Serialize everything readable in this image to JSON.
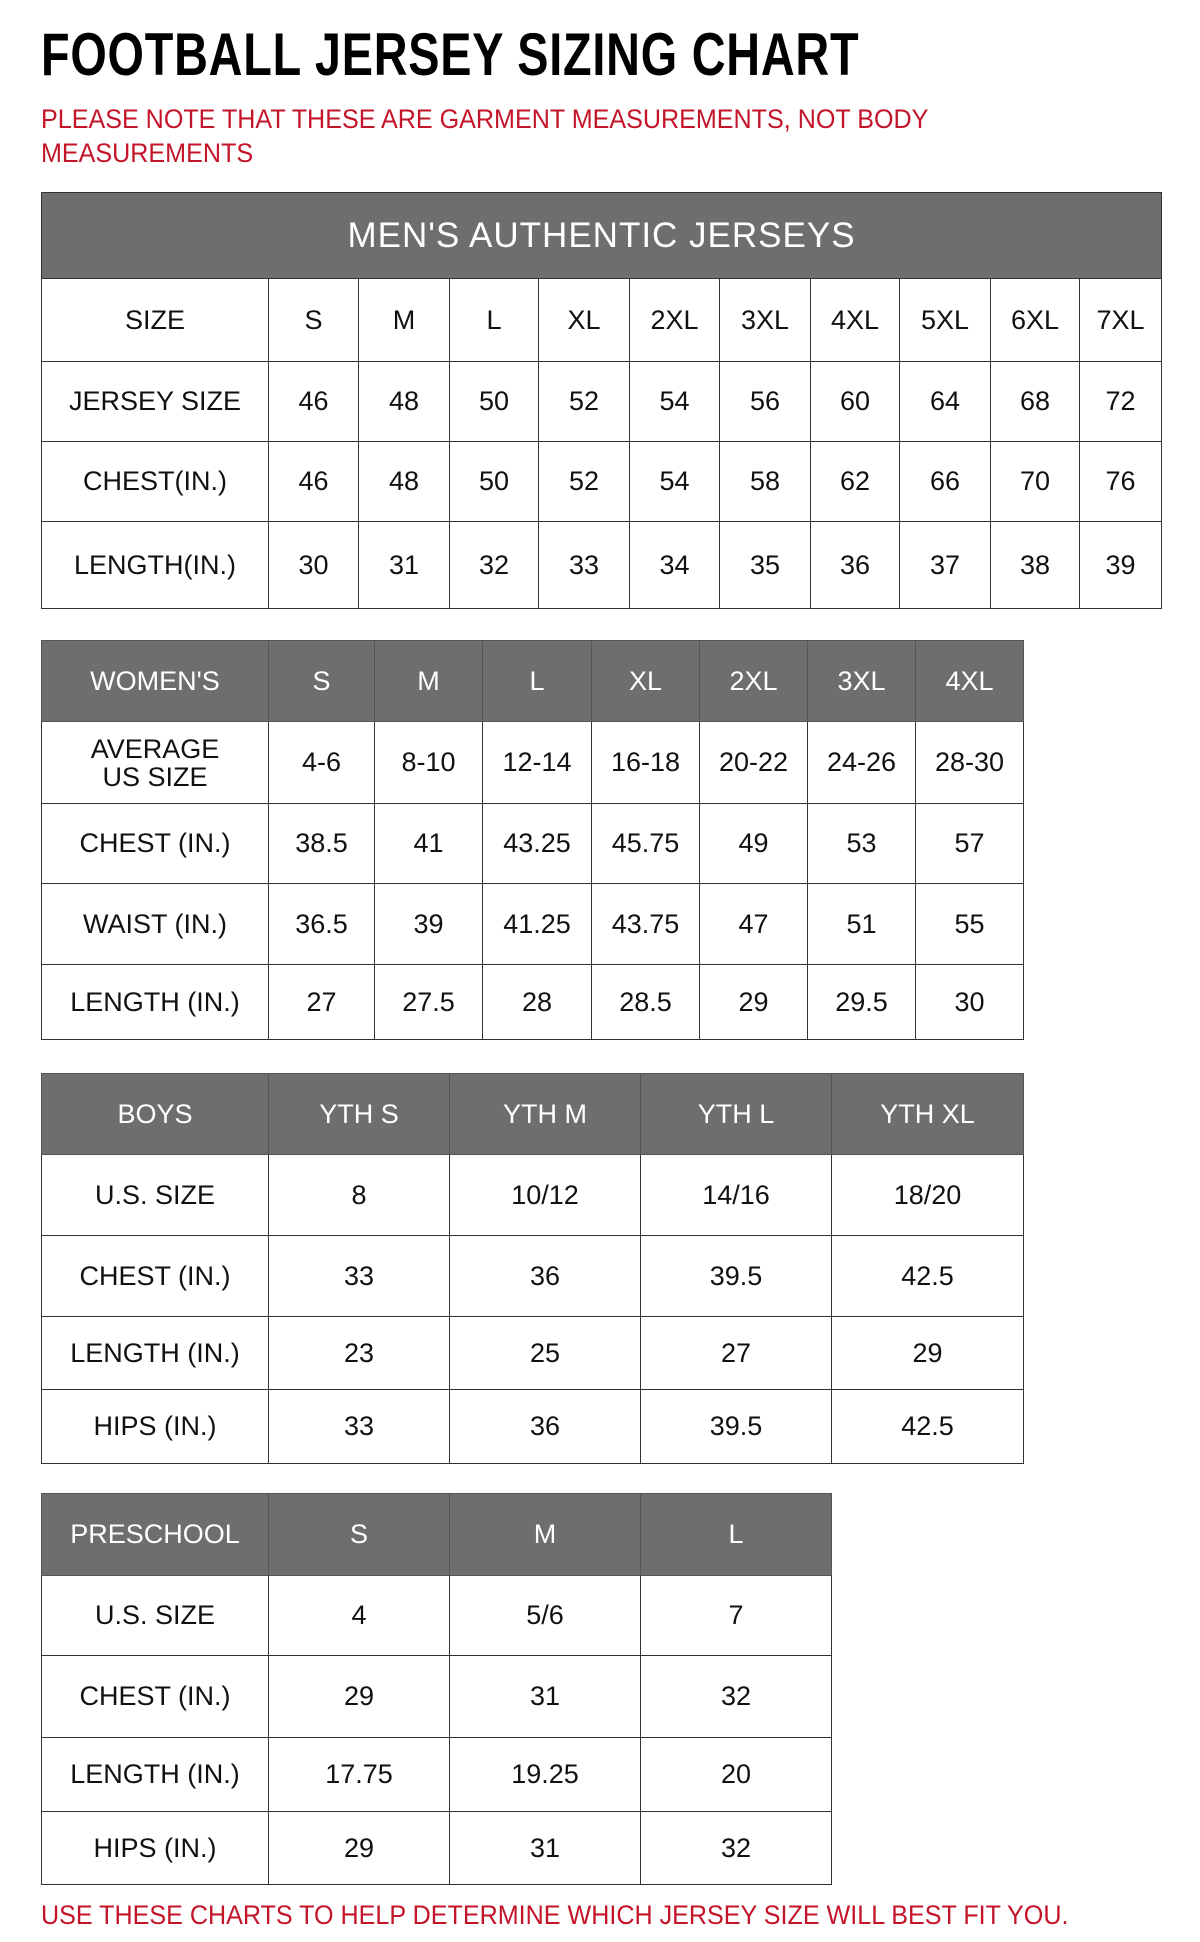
{
  "title": "FOOTBALL JERSEY SIZING CHART",
  "note": "PLEASE NOTE THAT THESE ARE GARMENT MEASUREMENTS, NOT BODY MEASUREMENTS",
  "footer": "USE THESE CHARTS TO HELP DETERMINE WHICH JERSEY SIZE WILL BEST FIT YOU.",
  "colors": {
    "header_bg": "#6e6e6e",
    "accent_red": "#c4142a"
  },
  "tables": {
    "men": {
      "banner": "MEN'S AUTHENTIC JERSEYS",
      "rows": [
        [
          "SIZE",
          "S",
          "M",
          "L",
          "XL",
          "2XL",
          "3XL",
          "4XL",
          "5XL",
          "6XL",
          "7XL"
        ],
        [
          "JERSEY SIZE",
          "46",
          "48",
          "50",
          "52",
          "54",
          "56",
          "60",
          "64",
          "68",
          "72"
        ],
        [
          "CHEST(IN.)",
          "46",
          "48",
          "50",
          "52",
          "54",
          "58",
          "62",
          "66",
          "70",
          "76"
        ],
        [
          "LENGTH(IN.)",
          "30",
          "31",
          "32",
          "33",
          "34",
          "35",
          "36",
          "37",
          "38",
          "39"
        ]
      ]
    },
    "women": {
      "header": [
        "WOMEN'S",
        "S",
        "M",
        "L",
        "XL",
        "2XL",
        "3XL",
        "4XL"
      ],
      "rows": [
        [
          "AVERAGE US SIZE",
          "4-6",
          "8-10",
          "12-14",
          "16-18",
          "20-22",
          "24-26",
          "28-30"
        ],
        [
          "CHEST (IN.)",
          "38.5",
          "41",
          "43.25",
          "45.75",
          "49",
          "53",
          "57"
        ],
        [
          "WAIST (IN.)",
          "36.5",
          "39",
          "41.25",
          "43.75",
          "47",
          "51",
          "55"
        ],
        [
          "LENGTH (IN.)",
          "27",
          "27.5",
          "28",
          "28.5",
          "29",
          "29.5",
          "30"
        ]
      ]
    },
    "boys": {
      "header": [
        "BOYS",
        "YTH S",
        "YTH M",
        "YTH L",
        "YTH XL"
      ],
      "rows": [
        [
          "U.S. SIZE",
          "8",
          "10/12",
          "14/16",
          "18/20"
        ],
        [
          "CHEST (IN.)",
          "33",
          "36",
          "39.5",
          "42.5"
        ],
        [
          "LENGTH (IN.)",
          "23",
          "25",
          "27",
          "29"
        ],
        [
          "HIPS (IN.)",
          "33",
          "36",
          "39.5",
          "42.5"
        ]
      ]
    },
    "pre": {
      "header": [
        "PRESCHOOL",
        "S",
        "M",
        "L"
      ],
      "rows": [
        [
          "U.S. SIZE",
          "4",
          "5/6",
          "7"
        ],
        [
          "CHEST (IN.)",
          "29",
          "31",
          "32"
        ],
        [
          "LENGTH (IN.)",
          "17.75",
          "19.25",
          "20"
        ],
        [
          "HIPS (IN.)",
          "29",
          "31",
          "32"
        ]
      ]
    }
  }
}
